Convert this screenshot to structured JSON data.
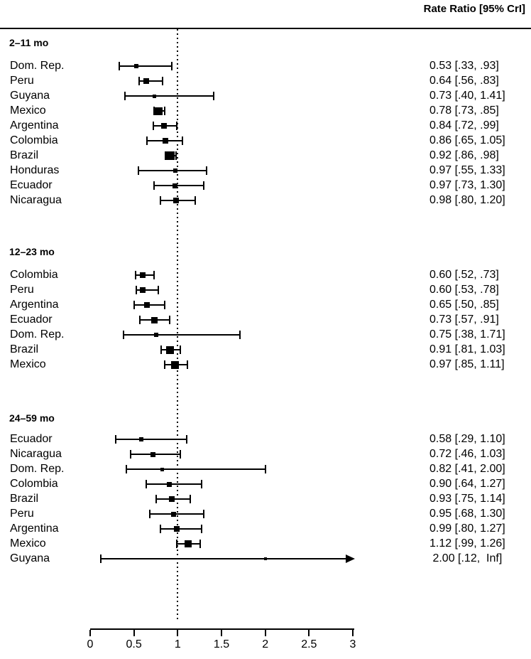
{
  "header": {
    "title": "Rate Ratio [95% CrI]"
  },
  "chart_data": {
    "type": "forest",
    "title": "Rate Ratio [95% CrI]",
    "x_axis": {
      "ticks": [
        "0",
        "0.5",
        "1",
        "1.5",
        "2",
        "2.5",
        "3"
      ],
      "tick_values": [
        0,
        0.5,
        1,
        1.5,
        2,
        2.5,
        3
      ],
      "range": [
        0,
        3
      ]
    },
    "reference_line": 1,
    "colors": {
      "foreground": "#000000",
      "background": "#ffffff"
    },
    "groups": [
      {
        "label": "2–11 mo",
        "rows": [
          {
            "country": "Dom. Rep.",
            "estimate": 0.53,
            "lower": 0.33,
            "upper": 0.93,
            "annotation": "0.53 [.33, .93]",
            "marker_size": 6
          },
          {
            "country": "Peru",
            "estimate": 0.64,
            "lower": 0.56,
            "upper": 0.83,
            "annotation": "0.64 [.56, .83]",
            "marker_size": 8
          },
          {
            "country": "Guyana",
            "estimate": 0.73,
            "lower": 0.4,
            "upper": 1.41,
            "annotation": "0.73 [.40, 1.41]",
            "marker_size": 5
          },
          {
            "country": "Mexico",
            "estimate": 0.78,
            "lower": 0.73,
            "upper": 0.85,
            "annotation": "0.78 [.73, .85]",
            "marker_size": 11
          },
          {
            "country": "Argentina",
            "estimate": 0.84,
            "lower": 0.72,
            "upper": 0.99,
            "annotation": "0.84 [.72, .99]",
            "marker_size": 8
          },
          {
            "country": "Colombia",
            "estimate": 0.86,
            "lower": 0.65,
            "upper": 1.05,
            "annotation": "0.86 [.65, 1.05]",
            "marker_size": 8
          },
          {
            "country": "Brazil",
            "estimate": 0.92,
            "lower": 0.86,
            "upper": 0.98,
            "annotation": "0.92 [.86, .98]",
            "marker_size": 12
          },
          {
            "country": "Honduras",
            "estimate": 0.97,
            "lower": 0.55,
            "upper": 1.33,
            "annotation": "0.97 [.55, 1.33]",
            "marker_size": 6
          },
          {
            "country": "Ecuador",
            "estimate": 0.97,
            "lower": 0.73,
            "upper": 1.3,
            "annotation": "0.97 [.73, 1.30]",
            "marker_size": 7
          },
          {
            "country": "Nicaragua",
            "estimate": 0.98,
            "lower": 0.8,
            "upper": 1.2,
            "annotation": "0.98 [.80, 1.20]",
            "marker_size": 8
          }
        ]
      },
      {
        "label": "12–23 mo",
        "rows": [
          {
            "country": "Colombia",
            "estimate": 0.6,
            "lower": 0.52,
            "upper": 0.73,
            "annotation": "0.60 [.52, .73]",
            "marker_size": 8
          },
          {
            "country": "Peru",
            "estimate": 0.6,
            "lower": 0.53,
            "upper": 0.78,
            "annotation": "0.60 [.53, .78]",
            "marker_size": 8
          },
          {
            "country": "Argentina",
            "estimate": 0.65,
            "lower": 0.5,
            "upper": 0.85,
            "annotation": "0.65 [.50, .85]",
            "marker_size": 8
          },
          {
            "country": "Ecuador",
            "estimate": 0.73,
            "lower": 0.57,
            "upper": 0.91,
            "annotation": "0.73 [.57, .91]",
            "marker_size": 9
          },
          {
            "country": "Dom. Rep.",
            "estimate": 0.75,
            "lower": 0.38,
            "upper": 1.71,
            "annotation": "0.75 [.38, 1.71]",
            "marker_size": 6
          },
          {
            "country": "Brazil",
            "estimate": 0.91,
            "lower": 0.81,
            "upper": 1.03,
            "annotation": "0.91 [.81, 1.03]",
            "marker_size": 11
          },
          {
            "country": "Mexico",
            "estimate": 0.97,
            "lower": 0.85,
            "upper": 1.11,
            "annotation": "0.97 [.85, 1.11]",
            "marker_size": 11
          }
        ]
      },
      {
        "label": "24–59 mo",
        "rows": [
          {
            "country": "Ecuador",
            "estimate": 0.58,
            "lower": 0.29,
            "upper": 1.1,
            "annotation": "0.58 [.29, 1.10]",
            "marker_size": 6
          },
          {
            "country": "Nicaragua",
            "estimate": 0.72,
            "lower": 0.46,
            "upper": 1.03,
            "annotation": "0.72 [.46, 1.03]",
            "marker_size": 7
          },
          {
            "country": "Dom. Rep.",
            "estimate": 0.82,
            "lower": 0.41,
            "upper": 2.0,
            "annotation": "0.82 [.41, 2.00]",
            "marker_size": 5
          },
          {
            "country": "Colombia",
            "estimate": 0.9,
            "lower": 0.64,
            "upper": 1.27,
            "annotation": "0.90 [.64, 1.27]",
            "marker_size": 7
          },
          {
            "country": "Brazil",
            "estimate": 0.93,
            "lower": 0.75,
            "upper": 1.14,
            "annotation": "0.93 [.75, 1.14]",
            "marker_size": 8
          },
          {
            "country": "Peru",
            "estimate": 0.95,
            "lower": 0.68,
            "upper": 1.3,
            "annotation": "0.95 [.68, 1.30]",
            "marker_size": 7
          },
          {
            "country": "Argentina",
            "estimate": 0.99,
            "lower": 0.8,
            "upper": 1.27,
            "annotation": "0.99 [.80, 1.27]",
            "marker_size": 8
          },
          {
            "country": "Mexico",
            "estimate": 1.12,
            "lower": 0.99,
            "upper": 1.26,
            "annotation": "1.12 [.99, 1.26]",
            "marker_size": 10
          },
          {
            "country": "Guyana",
            "estimate": 2.0,
            "lower": 0.12,
            "upper": "Inf",
            "annotation": " 2.00 [.12,  Inf]",
            "marker_size": 4,
            "arrow": true
          }
        ]
      }
    ]
  }
}
